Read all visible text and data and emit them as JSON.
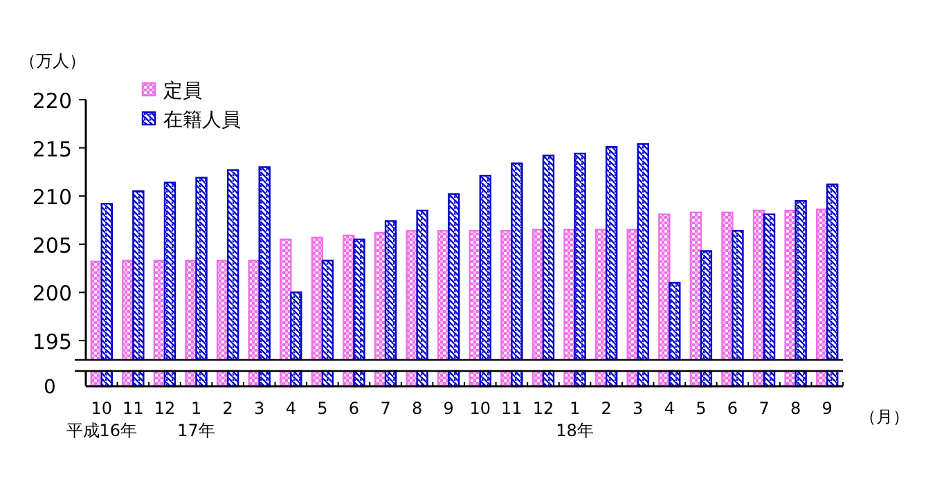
{
  "chart_data": {
    "type": "bar",
    "ylabel": "（万人）",
    "xlabel": "（月）",
    "categories": [
      "10\n平成16年",
      "11",
      "12",
      "1\n17年",
      "2",
      "3",
      "4",
      "5",
      "6",
      "7",
      "8",
      "9",
      "10",
      "11",
      "12",
      "1\n18年",
      "2",
      "3",
      "4",
      "5",
      "6",
      "7",
      "8",
      "9"
    ],
    "series": [
      {
        "name": "定員",
        "color": "#f070e8",
        "values": [
          203.2,
          203.3,
          203.3,
          203.3,
          203.3,
          203.3,
          205.5,
          205.7,
          205.9,
          206.2,
          206.4,
          206.4,
          206.4,
          206.4,
          206.5,
          206.5,
          206.5,
          206.5,
          208.1,
          208.3,
          208.3,
          208.5,
          208.5,
          208.6
        ]
      },
      {
        "name": "在籍人員",
        "color": "#0000cc",
        "values": [
          209.2,
          210.5,
          211.4,
          211.9,
          212.7,
          213.0,
          200.0,
          203.3,
          205.5,
          207.4,
          208.5,
          210.2,
          212.1,
          213.4,
          214.2,
          214.4,
          215.1,
          215.4,
          201.0,
          204.3,
          206.4,
          208.1,
          209.5,
          211.2
        ]
      }
    ],
    "ylim": [
      193,
      220
    ],
    "yticks": [
      195,
      200,
      205,
      210,
      215,
      220
    ],
    "annotations": [
      "0"
    ],
    "legend": "top left",
    "grid": false
  }
}
